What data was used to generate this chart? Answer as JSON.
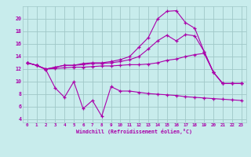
{
  "xlabel": "Windchill (Refroidissement éolien,°C)",
  "background_color": "#c8ecec",
  "grid_color": "#a0c8c8",
  "line_color": "#aa00aa",
  "xlim": [
    -0.5,
    23.5
  ],
  "ylim": [
    3.5,
    22
  ],
  "xticks": [
    0,
    1,
    2,
    3,
    4,
    5,
    6,
    7,
    8,
    9,
    10,
    11,
    12,
    13,
    14,
    15,
    16,
    17,
    18,
    19,
    20,
    21,
    22,
    23
  ],
  "yticks": [
    4,
    6,
    8,
    10,
    12,
    14,
    16,
    18,
    20
  ],
  "line1_x": [
    0,
    1,
    2,
    3,
    4,
    5,
    6,
    7,
    8,
    9,
    10,
    11,
    12,
    13,
    14,
    15,
    16,
    17,
    18,
    19,
    20,
    21,
    22,
    23
  ],
  "line1_y": [
    13.0,
    12.6,
    11.9,
    9.0,
    7.5,
    10.0,
    5.7,
    7.0,
    4.5,
    9.2,
    8.5,
    8.5,
    8.3,
    8.1,
    8.0,
    7.9,
    7.8,
    7.6,
    7.5,
    7.4,
    7.3,
    7.2,
    7.1,
    7.0
  ],
  "line2_x": [
    0,
    1,
    2,
    3,
    4,
    5,
    6,
    7,
    8,
    9,
    10,
    11,
    12,
    13,
    14,
    15,
    16,
    17,
    18,
    19,
    20,
    21,
    22,
    23
  ],
  "line2_y": [
    13.0,
    12.6,
    12.0,
    12.1,
    12.2,
    12.3,
    12.3,
    12.4,
    12.5,
    12.5,
    12.6,
    12.7,
    12.7,
    12.8,
    13.0,
    13.4,
    13.6,
    14.0,
    14.3,
    14.5,
    11.5,
    9.7,
    9.7,
    9.7
  ],
  "line3_x": [
    0,
    1,
    2,
    3,
    4,
    5,
    6,
    7,
    8,
    9,
    10,
    11,
    12,
    13,
    14,
    15,
    16,
    17,
    18,
    19,
    20,
    21,
    22,
    23
  ],
  "line3_y": [
    13.0,
    12.6,
    12.0,
    12.3,
    12.6,
    12.6,
    12.7,
    12.9,
    12.9,
    13.0,
    13.2,
    13.5,
    14.0,
    15.2,
    16.5,
    17.4,
    16.5,
    17.5,
    17.3,
    14.8,
    11.5,
    9.7,
    9.7,
    9.7
  ],
  "line4_x": [
    0,
    1,
    2,
    3,
    4,
    5,
    6,
    7,
    8,
    9,
    10,
    11,
    12,
    13,
    14,
    15,
    16,
    17,
    18,
    19,
    20,
    21,
    22,
    23
  ],
  "line4_y": [
    13.0,
    12.6,
    12.0,
    12.3,
    12.6,
    12.6,
    12.9,
    13.0,
    13.0,
    13.2,
    13.5,
    14.0,
    15.5,
    17.0,
    20.0,
    21.2,
    21.3,
    19.4,
    18.5,
    14.8,
    11.5,
    9.7,
    9.7,
    9.7
  ]
}
